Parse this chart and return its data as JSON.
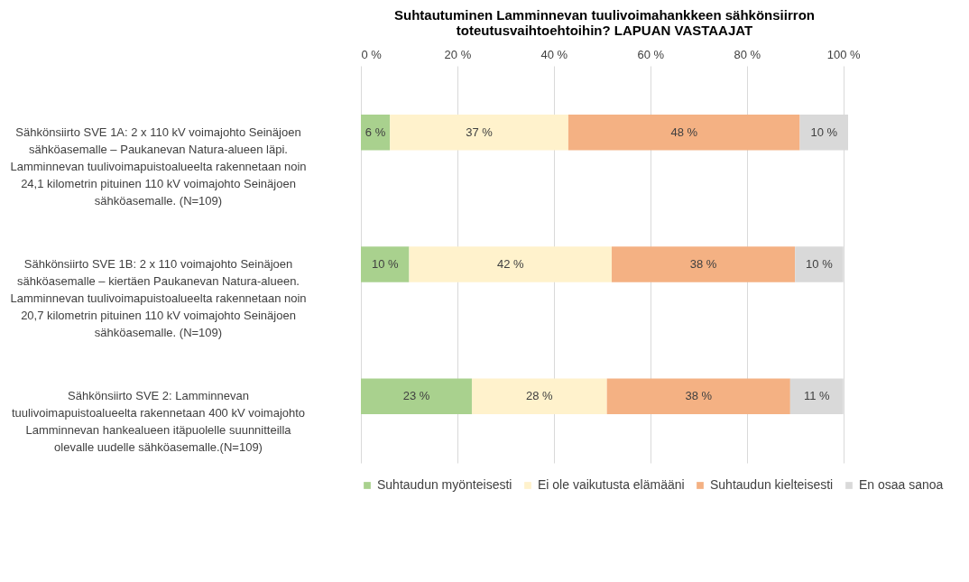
{
  "chart_data": {
    "type": "bar",
    "orientation": "horizontal",
    "stacked": true,
    "title": "Suhtautuminen Lamminnevan tuulivoimahankkeen sähkönsiirron toteutusvaihtoehtoihin? LAPUAN VASTAAJAT",
    "categories": [
      "Sähkönsiirto SVE 1A: 2 x 110 kV voimajohto Seinäjoen sähköasemalle – Paukanevan Natura-alueen läpi. Lamminnevan tuulivoimapuistoalueelta rakennetaan noin 24,1 kilometrin pituinen 110 kV voimajohto Seinäjoen sähköasemalle. (N=109)",
      "Sähkönsiirto SVE 1B: 2 x 110 voimajohto Seinäjoen sähköasemalle – kiertäen Paukanevan Natura-alueen. Lamminnevan tuulivoimapuistoalueelta rakennetaan noin 20,7 kilometrin pituinen 110 kV voimajohto Seinäjoen sähköasemalle. (N=109)",
      "Sähkönsiirto SVE 2: Lamminnevan tuulivoimapuistoalueelta rakennetaan 400 kV voimajohto Lamminnevan hankealueen itäpuolelle suunnitteilla olevalle uudelle sähköasemalle.(N=109)"
    ],
    "series": [
      {
        "name": "Suhtaudun myönteisesti",
        "color": "#a9d18e",
        "values": [
          6,
          10,
          23
        ],
        "value_labels": [
          "6 %",
          "10 %",
          "23 %"
        ]
      },
      {
        "name": "Ei ole vaikutusta elämääni",
        "color": "#fff2cc",
        "values": [
          37,
          42,
          28
        ],
        "value_labels": [
          "37 %",
          "42 %",
          "28 %"
        ]
      },
      {
        "name": "Suhtaudun kielteisesti",
        "color": "#f4b183",
        "values": [
          48,
          38,
          38
        ],
        "value_labels": [
          "48 %",
          "38 %",
          "38 %"
        ]
      },
      {
        "name": "En osaa sanoa",
        "color": "#d9d9d9",
        "values": [
          10,
          10,
          11
        ],
        "value_labels": [
          "10 %",
          "10 %",
          "11 %"
        ]
      }
    ],
    "xlim": [
      0,
      101
    ],
    "xticks": [
      {
        "value": 0,
        "label": "0 %"
      },
      {
        "value": 20,
        "label": "20 %"
      },
      {
        "value": 40,
        "label": "40 %"
      },
      {
        "value": 60,
        "label": "60 %"
      },
      {
        "value": 80,
        "label": "80 %"
      },
      {
        "value": 100,
        "label": "100 %"
      }
    ],
    "grid": "x",
    "legend": "bottom"
  }
}
